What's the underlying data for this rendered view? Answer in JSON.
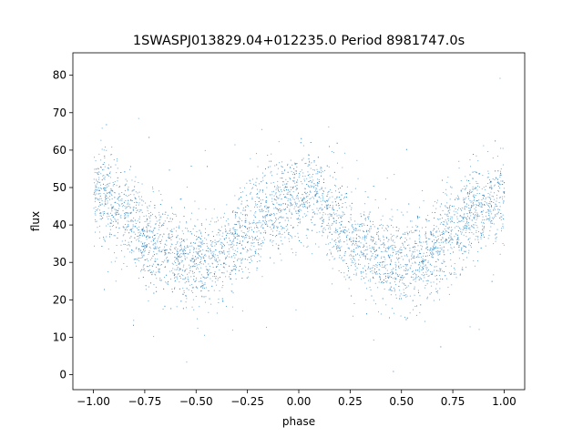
{
  "chart_data": {
    "type": "scatter",
    "title": "1SWASPJ013829.04+012235.0 Period 8981747.0s",
    "xlabel": "phase",
    "ylabel": "flux",
    "xlim": [
      -1.1,
      1.1
    ],
    "ylim": [
      -4,
      86
    ],
    "xticks": [
      "−1.00",
      "−0.75",
      "−0.50",
      "−0.25",
      "0.00",
      "0.25",
      "0.50",
      "0.75",
      "1.00"
    ],
    "xtick_values": [
      -1,
      -0.75,
      -0.5,
      -0.25,
      0,
      0.25,
      0.5,
      0.75,
      1
    ],
    "yticks": [
      "0",
      "10",
      "20",
      "30",
      "40",
      "50",
      "60",
      "70",
      "80"
    ],
    "ytick_values": [
      0,
      10,
      20,
      30,
      40,
      50,
      60,
      70,
      80
    ],
    "grid": false,
    "point_color": "#1f77b4",
    "binned_mean_flux": {
      "phase": [
        0,
        0.05,
        0.1,
        0.15,
        0.2,
        0.25,
        0.3,
        0.35,
        0.4,
        0.45,
        0.5,
        0.55,
        0.6,
        0.65,
        0.7,
        0.75,
        0.8,
        0.85,
        0.9,
        0.95,
        1.0
      ],
      "flux": [
        48,
        50,
        46,
        42,
        40,
        36,
        35,
        34,
        32,
        31,
        30,
        30,
        31,
        33,
        36,
        38,
        41,
        44,
        45,
        46,
        48
      ]
    },
    "scatter_sigma": 6,
    "phase_range": [
      -1,
      1
    ]
  }
}
